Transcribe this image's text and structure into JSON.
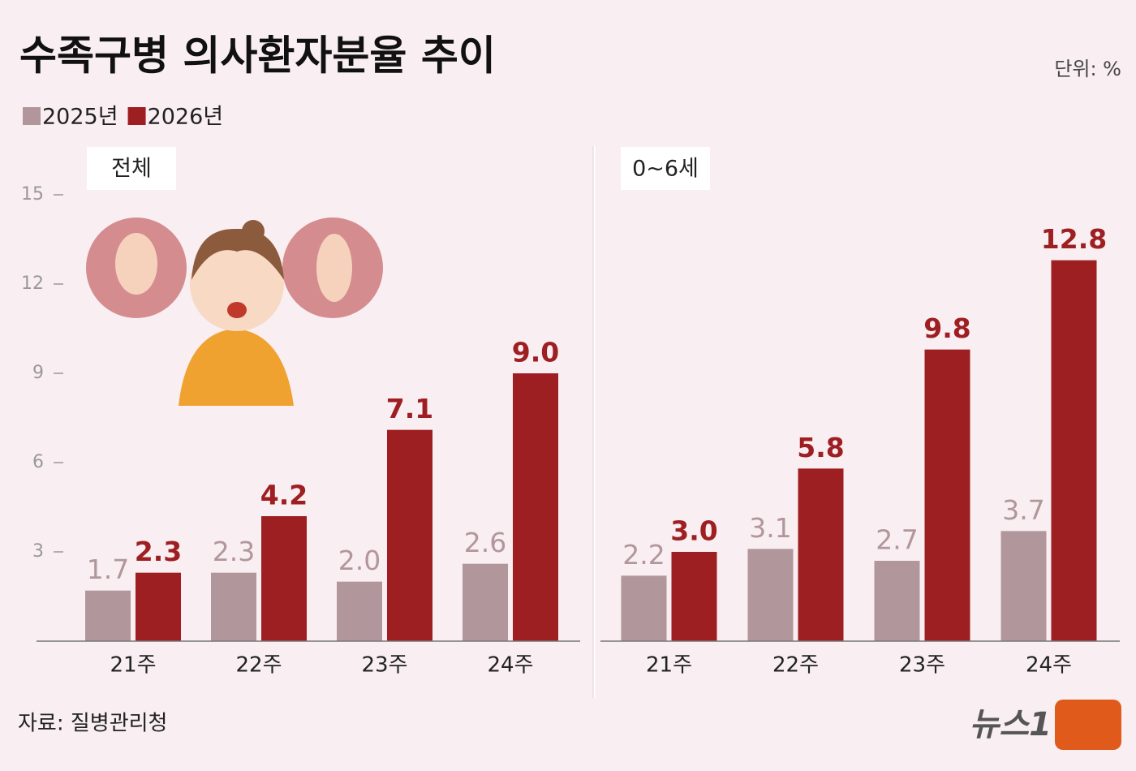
{
  "title": "수족구병 의사환자분율 추이",
  "unit": "단위: %",
  "source": "자료: 질병관리청",
  "logo": "뉴스1",
  "chart_data": [
    {
      "type": "bar",
      "subtitle": "전체",
      "categories": [
        "21주",
        "22주",
        "23주",
        "24주"
      ],
      "series": [
        {
          "name": "2025년",
          "color": "#b1979b",
          "values": [
            1.7,
            2.3,
            2.0,
            2.6
          ],
          "value_labels": [
            "1.7",
            "2.3",
            "2.0",
            "2.6"
          ]
        },
        {
          "name": "2026년",
          "color": "#9e1f22",
          "values": [
            2.3,
            4.2,
            7.1,
            9.0
          ],
          "value_labels": [
            "2.3",
            "4.2",
            "7.1",
            "9.0"
          ]
        }
      ],
      "ylim": [
        0,
        15
      ],
      "yticks": [
        3,
        6,
        9,
        12,
        15
      ]
    },
    {
      "type": "bar",
      "subtitle": "0~6세",
      "categories": [
        "21주",
        "22주",
        "23주",
        "24주"
      ],
      "series": [
        {
          "color": "#b1979b",
          "values": [
            2.2,
            3.1,
            2.7,
            3.7
          ],
          "value_labels": [
            "2.2",
            "3.1",
            "2.7",
            "3.7"
          ]
        },
        {
          "color": "#9e1f22",
          "values": [
            3.0,
            5.8,
            9.8,
            12.8
          ],
          "value_labels": [
            "3.0",
            "5.8",
            "9.8",
            "12.8"
          ]
        }
      ],
      "ylim": [
        0,
        15
      ]
    }
  ]
}
